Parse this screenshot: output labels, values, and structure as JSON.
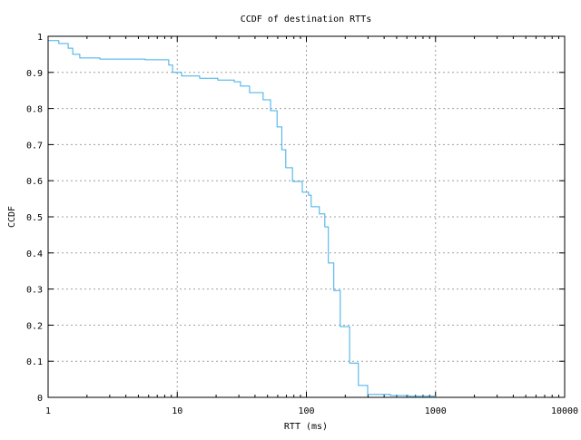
{
  "chart_data": {
    "type": "line",
    "title": "CCDF of destination RTTs",
    "xlabel": "RTT (ms)",
    "ylabel": "CCDF",
    "xscale": "log",
    "xlim": [
      1,
      10000
    ],
    "ylim": [
      0,
      1
    ],
    "grid": true,
    "legend": "none",
    "x_ticks": [
      "1",
      "10",
      "100",
      "1000",
      "10000"
    ],
    "y_ticks": [
      "0",
      "0.1",
      "0.2",
      "0.3",
      "0.4",
      "0.5",
      "0.6",
      "0.7",
      "0.8",
      "0.9",
      "1"
    ],
    "line_color": "#3daee9",
    "series": [
      {
        "x": [
          1,
          1.21,
          1.43,
          1.55,
          1.76,
          2.52,
          5.65,
          8.2,
          8.6,
          9.2,
          10.8,
          14.9,
          20.6,
          27.6,
          30.9,
          36.3,
          46.3,
          52.8,
          59.3,
          64.5,
          69.3,
          78,
          93,
          104,
          109,
          126,
          139,
          148,
          163,
          183,
          216,
          253,
          298,
          448,
          619,
          1000
        ],
        "y": [
          0.988,
          0.98,
          0.967,
          0.95,
          0.94,
          0.937,
          0.935,
          0.935,
          0.92,
          0.9,
          0.89,
          0.884,
          0.879,
          0.874,
          0.862,
          0.844,
          0.824,
          0.794,
          0.749,
          0.686,
          0.636,
          0.598,
          0.568,
          0.56,
          0.528,
          0.508,
          0.472,
          0.372,
          0.296,
          0.196,
          0.095,
          0.033,
          0.008,
          0.005,
          0.003,
          0.001
        ]
      }
    ]
  }
}
